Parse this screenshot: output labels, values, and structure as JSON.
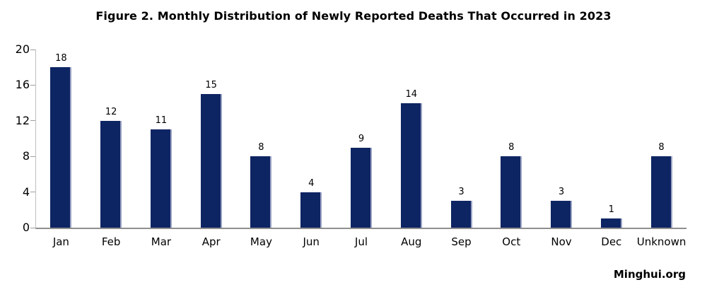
{
  "chart_data": {
    "type": "bar",
    "title": "Figure 2. Monthly Distribution of Newly Reported Deaths That Occurred in 2023",
    "categories": [
      "Jan",
      "Feb",
      "Mar",
      "Apr",
      "May",
      "Jun",
      "Jul",
      "Aug",
      "Sep",
      "Oct",
      "Nov",
      "Dec",
      "Unknown"
    ],
    "values": [
      18,
      12,
      11,
      15,
      8,
      4,
      9,
      14,
      3,
      8,
      3,
      1,
      8
    ],
    "xlabel": "",
    "ylabel": "",
    "ylim": [
      0,
      20
    ],
    "yticks": [
      0,
      4,
      8,
      12,
      16,
      20
    ],
    "grid": false,
    "legend": false,
    "value_labels_shown": true,
    "bar_color": "#0e2563",
    "bar_edge_color": "#9aa2c4",
    "axis_line_color": "#bfbfbf",
    "baseline_color": "#8f8f8f",
    "source_label": "Minghui.org"
  }
}
